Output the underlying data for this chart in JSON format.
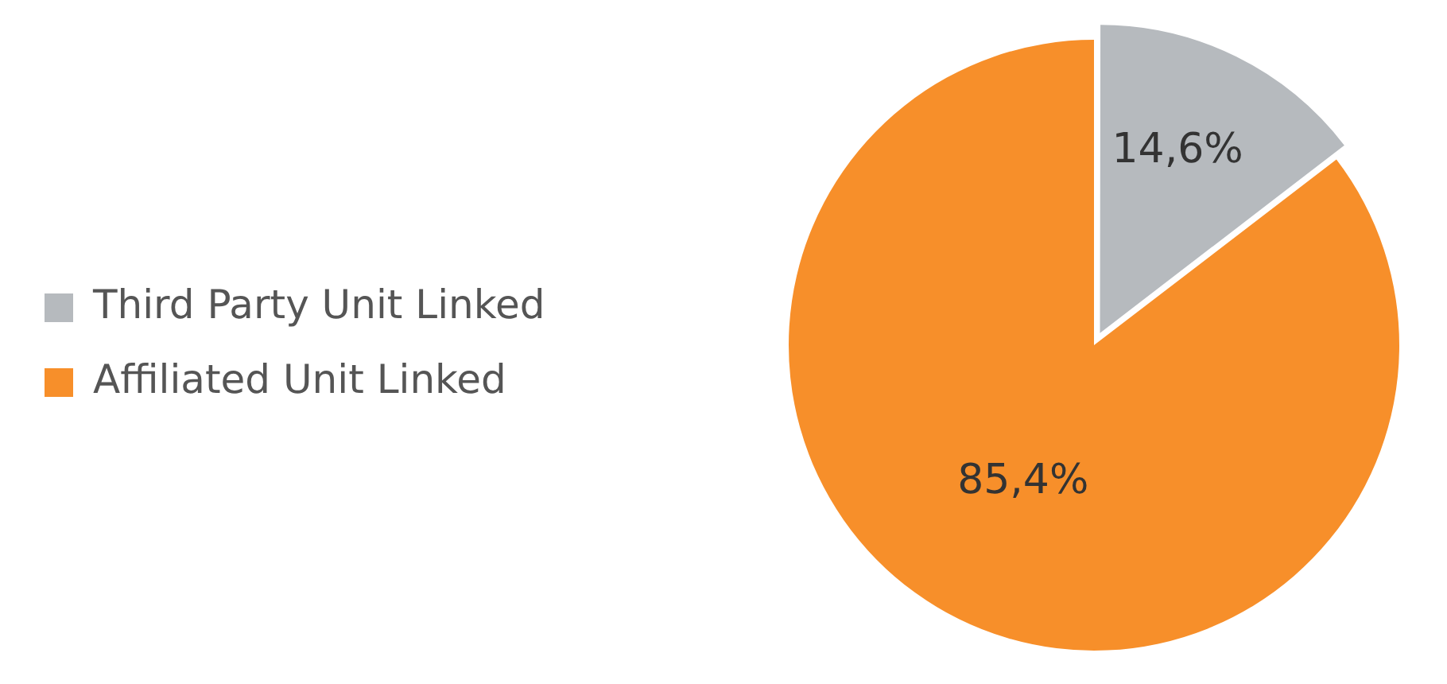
{
  "chart_data": {
    "type": "pie",
    "categories": [
      "Third Party Unit Linked",
      "Affiliated Unit Linked"
    ],
    "values": [
      14.6,
      85.4
    ],
    "colors": [
      "#b6babe",
      "#f78f2a"
    ],
    "value_labels": [
      "14,6%",
      "85,4%"
    ],
    "legend": "left"
  }
}
